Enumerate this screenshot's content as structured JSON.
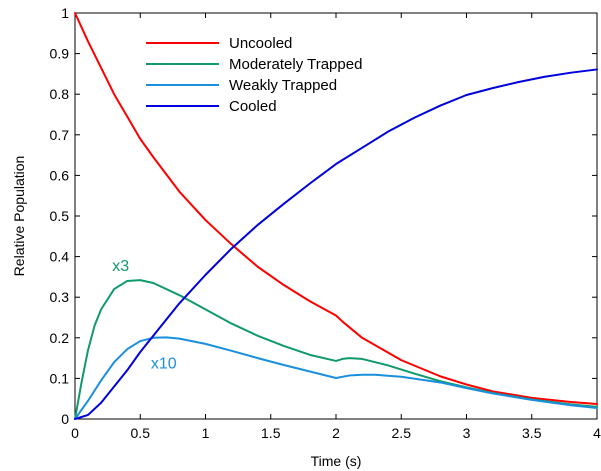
{
  "chart_data": {
    "type": "line",
    "title": "",
    "xlabel": "Time (s)",
    "ylabel": "Relative Population",
    "xlim": [
      0,
      4
    ],
    "ylim": [
      0,
      1
    ],
    "xticks": [
      0,
      0.5,
      1,
      1.5,
      2,
      2.5,
      3,
      3.5,
      4
    ],
    "xtick_labels": [
      "0",
      "0.5",
      "1",
      "1.5",
      "2",
      "2.5",
      "3",
      "3.5",
      "4"
    ],
    "yticks": [
      0,
      0.1,
      0.2,
      0.3,
      0.4,
      0.5,
      0.6,
      0.7,
      0.8,
      0.9,
      1
    ],
    "ytick_labels": [
      "0",
      "0.1",
      "0.2",
      "0.3",
      "0.4",
      "0.5",
      "0.6",
      "0.7",
      "0.8",
      "0.9",
      "1"
    ],
    "grid": false,
    "legend_position": "top-center",
    "series": [
      {
        "name": "Uncooled",
        "color": "#ff0000",
        "x": [
          0,
          0.1,
          0.2,
          0.3,
          0.4,
          0.5,
          0.6,
          0.8,
          1.0,
          1.2,
          1.4,
          1.6,
          1.8,
          2.0,
          2.05,
          2.2,
          2.5,
          2.8,
          3.0,
          3.2,
          3.5,
          3.8,
          4.0
        ],
        "y": [
          1.0,
          0.93,
          0.865,
          0.8,
          0.745,
          0.69,
          0.645,
          0.56,
          0.49,
          0.43,
          0.375,
          0.33,
          0.29,
          0.255,
          0.24,
          0.2,
          0.145,
          0.105,
          0.085,
          0.068,
          0.052,
          0.042,
          0.037
        ]
      },
      {
        "name": "Moderately Trapped",
        "color": "#109a6a",
        "x": [
          0,
          0.05,
          0.1,
          0.15,
          0.2,
          0.3,
          0.4,
          0.5,
          0.6,
          0.8,
          1.0,
          1.2,
          1.4,
          1.6,
          1.8,
          2.0,
          2.05,
          2.1,
          2.2,
          2.4,
          2.6,
          2.8,
          3.0,
          3.2,
          3.5,
          3.8,
          4.0
        ],
        "y": [
          0.0,
          0.09,
          0.17,
          0.23,
          0.27,
          0.32,
          0.34,
          0.342,
          0.335,
          0.305,
          0.27,
          0.235,
          0.205,
          0.18,
          0.158,
          0.143,
          0.148,
          0.15,
          0.148,
          0.132,
          0.112,
          0.093,
          0.078,
          0.064,
          0.048,
          0.036,
          0.03
        ]
      },
      {
        "name": "Weakly Trapped",
        "color": "#1a8fdc",
        "x": [
          0,
          0.1,
          0.2,
          0.3,
          0.4,
          0.5,
          0.6,
          0.7,
          0.8,
          1.0,
          1.2,
          1.4,
          1.6,
          1.8,
          2.0,
          2.1,
          2.2,
          2.3,
          2.5,
          2.8,
          3.0,
          3.2,
          3.5,
          3.8,
          4.0
        ],
        "y": [
          0.0,
          0.045,
          0.095,
          0.14,
          0.172,
          0.192,
          0.2,
          0.201,
          0.198,
          0.185,
          0.168,
          0.15,
          0.133,
          0.117,
          0.101,
          0.107,
          0.109,
          0.109,
          0.104,
          0.09,
          0.076,
          0.063,
          0.047,
          0.034,
          0.027
        ]
      },
      {
        "name": "Cooled",
        "color": "#0000dd",
        "x": [
          0,
          0.1,
          0.2,
          0.3,
          0.4,
          0.5,
          0.6,
          0.7,
          0.8,
          1.0,
          1.2,
          1.4,
          1.6,
          1.8,
          2.0,
          2.2,
          2.4,
          2.6,
          2.8,
          3.0,
          3.2,
          3.4,
          3.6,
          3.8,
          4.0
        ],
        "y": [
          0.0,
          0.01,
          0.04,
          0.08,
          0.12,
          0.165,
          0.205,
          0.245,
          0.285,
          0.355,
          0.42,
          0.478,
          0.53,
          0.58,
          0.628,
          0.668,
          0.708,
          0.742,
          0.772,
          0.798,
          0.815,
          0.83,
          0.843,
          0.853,
          0.861
        ]
      }
    ],
    "annotations": [
      {
        "text": "x3",
        "x": 0.35,
        "y": 0.365,
        "color": "#109a6a"
      },
      {
        "text": "x10",
        "x": 0.68,
        "y": 0.125,
        "color": "#1a8fdc"
      }
    ]
  }
}
